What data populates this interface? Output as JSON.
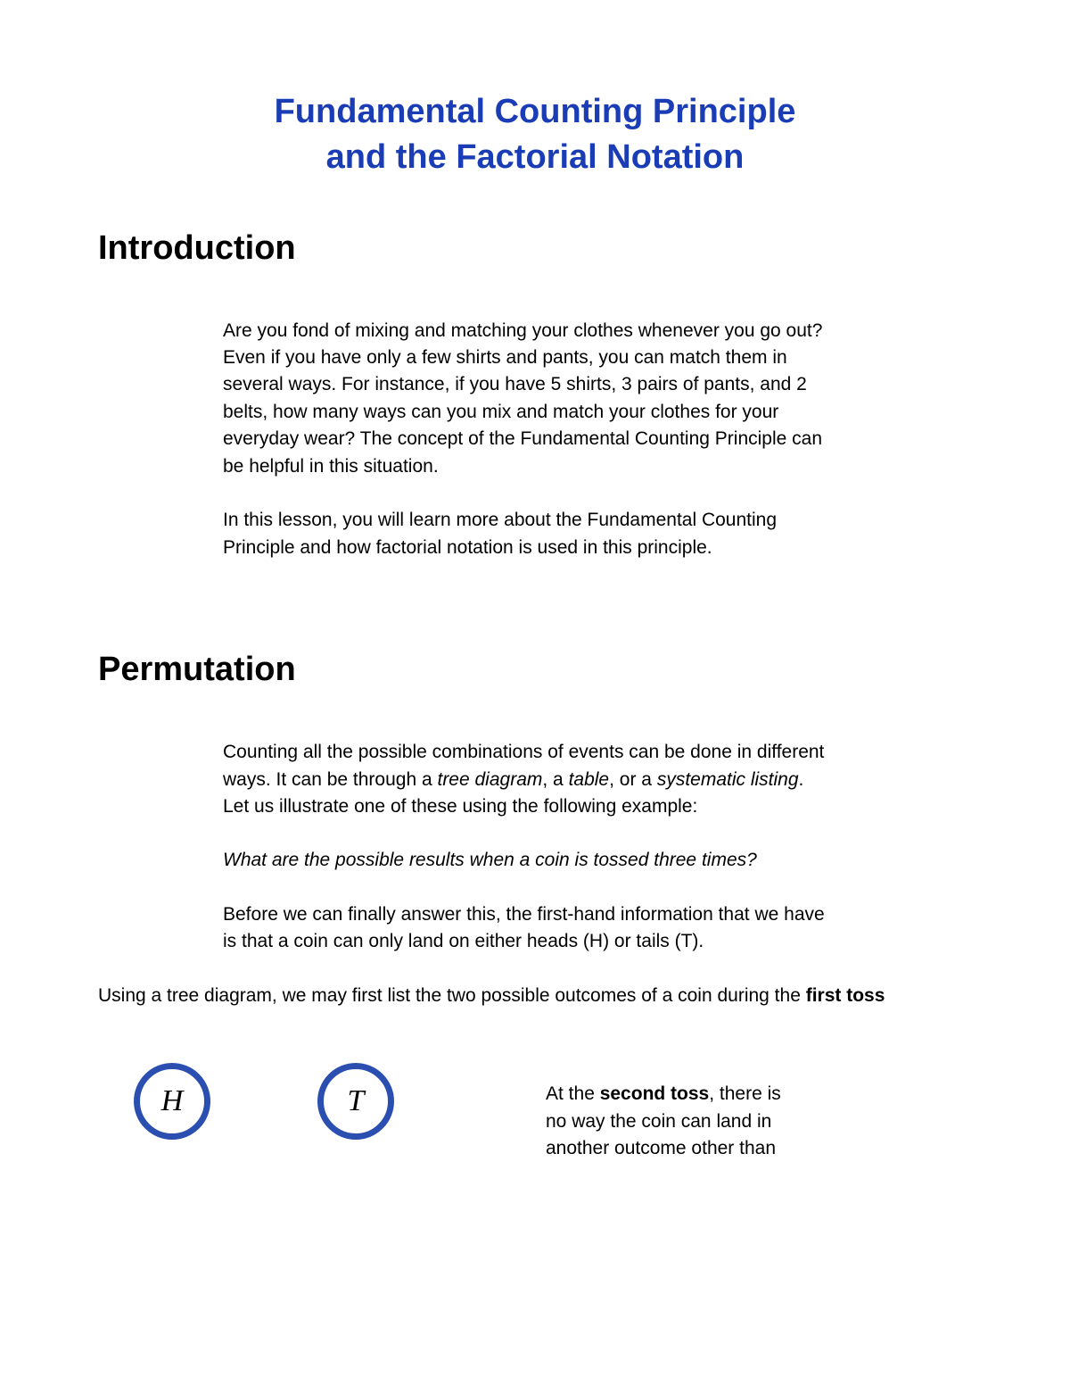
{
  "title": "Fundamental Counting Principle and the  Factorial Notation",
  "colors": {
    "title_color": "#1a3db5",
    "text_color": "#000000",
    "coin_border": "#2b4fb0",
    "background": "#ffffff"
  },
  "typography": {
    "title_fontsize": 38,
    "heading_fontsize": 38,
    "body_fontsize": 21,
    "coin_letter_fontsize": 34,
    "body_font": "Arial",
    "coin_font": "Times New Roman"
  },
  "intro": {
    "heading": "Introduction",
    "p1": "Are you fond of mixing and matching your clothes whenever you go out? Even if you have only a few shirts and pants, you can match them in several ways. For instance, if you have 5 shirts, 3 pairs of pants, and 2 belts, how many ways can you mix and match your clothes for your everyday wear? The concept of the Fundamental Counting Principle can be helpful in this situation.",
    "p2": "In this lesson, you will learn more about the Fundamental Counting Principle and how factorial notation is used in this principle."
  },
  "permutation": {
    "heading": "Permutation",
    "p1_pre": "Counting all the possible combinations of events can be done in different ways. It can be through a ",
    "p1_i1": "tree diagram",
    "p1_mid1": ", a ",
    "p1_i2": "table",
    "p1_mid2": ", or a ",
    "p1_i3": "systematic listing",
    "p1_post": ". Let us illustrate one of these using the following example:",
    "p2": "What are the possible results when a coin is tossed three times?",
    "p3": "Before we can finally answer this, the first-hand information that we have is that a coin can only land on either heads (H) or tails (T)."
  },
  "tree_intro": {
    "text_pre": "Using a tree diagram, we may first list the two possible outcomes of a coin during the ",
    "bold": "first toss"
  },
  "coins": {
    "h": "H",
    "t": "T",
    "border_width": 7,
    "diameter": 86
  },
  "second_toss": {
    "pre": "At the ",
    "bold": "second toss",
    "post": ", there is no way the coin can land in another outcome other than"
  }
}
